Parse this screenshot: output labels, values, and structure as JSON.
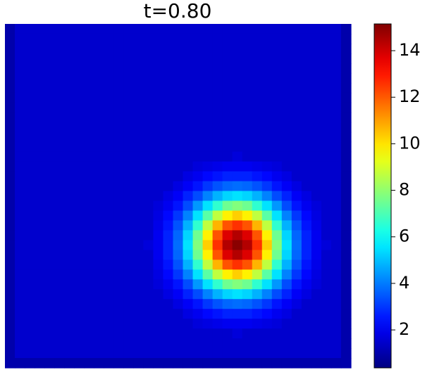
{
  "chart_data": {
    "type": "heatmap",
    "title": "t=0.80",
    "colormap": "jet",
    "clim": [
      0.37,
      15.15
    ],
    "cticks": [
      2,
      4,
      6,
      8,
      10,
      12,
      14
    ],
    "z": [
      [
        1.0,
        1.5,
        1.5,
        1.5,
        1.5,
        1.5,
        1.5,
        1.5,
        1.5,
        1.5,
        1.5,
        1.5,
        1.5,
        1.5,
        1.5,
        1.5,
        1.5,
        1.5,
        1.5,
        1.5,
        1.5,
        1.5,
        1.5,
        1.5,
        1.5,
        1.5,
        1.5,
        1.5,
        1.5,
        1.5,
        1.5,
        1.5,
        1.5,
        1.5,
        1.0
      ],
      [
        1.0,
        1.5,
        1.5,
        1.5,
        1.5,
        1.5,
        1.5,
        1.5,
        1.5,
        1.5,
        1.5,
        1.5,
        1.5,
        1.5,
        1.5,
        1.5,
        1.5,
        1.5,
        1.5,
        1.5,
        1.5,
        1.5,
        1.5,
        1.5,
        1.5,
        1.5,
        1.5,
        1.5,
        1.5,
        1.5,
        1.5,
        1.5,
        1.5,
        1.5,
        1.0
      ],
      [
        1.0,
        1.5,
        1.5,
        1.5,
        1.5,
        1.5,
        1.5,
        1.5,
        1.5,
        1.5,
        1.5,
        1.5,
        1.5,
        1.5,
        1.5,
        1.5,
        1.5,
        1.5,
        1.5,
        1.5,
        1.5,
        1.5,
        1.5,
        1.5,
        1.5,
        1.5,
        1.5,
        1.5,
        1.5,
        1.5,
        1.5,
        1.5,
        1.5,
        1.5,
        1.0
      ],
      [
        1.0,
        1.5,
        1.5,
        1.5,
        1.5,
        1.5,
        1.5,
        1.5,
        1.5,
        1.5,
        1.5,
        1.5,
        1.5,
        1.5,
        1.5,
        1.5,
        1.5,
        1.5,
        1.5,
        1.5,
        1.5,
        1.5,
        1.5,
        1.5,
        1.5,
        1.5,
        1.5,
        1.5,
        1.5,
        1.5,
        1.5,
        1.5,
        1.5,
        1.5,
        1.0
      ],
      [
        1.0,
        1.5,
        1.5,
        1.5,
        1.5,
        1.5,
        1.5,
        1.5,
        1.5,
        1.5,
        1.5,
        1.5,
        1.5,
        1.5,
        1.5,
        1.5,
        1.5,
        1.5,
        1.5,
        1.5,
        1.5,
        1.5,
        1.5,
        1.5,
        1.5,
        1.5,
        1.5,
        1.5,
        1.5,
        1.5,
        1.5,
        1.5,
        1.5,
        1.5,
        1.0
      ],
      [
        1.0,
        1.5,
        1.5,
        1.5,
        1.5,
        1.5,
        1.5,
        1.5,
        1.5,
        1.5,
        1.5,
        1.5,
        1.5,
        1.5,
        1.5,
        1.5,
        1.5,
        1.5,
        1.5,
        1.5,
        1.5,
        1.5,
        1.5,
        1.5,
        1.5,
        1.5,
        1.5,
        1.5,
        1.5,
        1.5,
        1.5,
        1.5,
        1.5,
        1.5,
        1.0
      ],
      [
        1.0,
        1.5,
        1.5,
        1.5,
        1.5,
        1.5,
        1.5,
        1.5,
        1.5,
        1.5,
        1.5,
        1.5,
        1.5,
        1.5,
        1.5,
        1.5,
        1.5,
        1.5,
        1.5,
        1.5,
        1.5,
        1.5,
        1.5,
        1.5,
        1.5,
        1.5,
        1.5,
        1.5,
        1.5,
        1.5,
        1.5,
        1.5,
        1.5,
        1.5,
        1.0
      ],
      [
        1.0,
        1.5,
        1.5,
        1.5,
        1.5,
        1.5,
        1.5,
        1.5,
        1.5,
        1.5,
        1.5,
        1.5,
        1.5,
        1.5,
        1.5,
        1.5,
        1.5,
        1.5,
        1.5,
        1.5,
        1.5,
        1.5,
        1.5,
        1.5,
        1.5,
        1.5,
        1.5,
        1.5,
        1.5,
        1.5,
        1.5,
        1.5,
        1.5,
        1.5,
        1.0
      ],
      [
        1.0,
        1.5,
        1.5,
        1.5,
        1.5,
        1.5,
        1.5,
        1.5,
        1.5,
        1.5,
        1.5,
        1.5,
        1.5,
        1.5,
        1.5,
        1.5,
        1.5,
        1.5,
        1.5,
        1.5,
        1.5,
        1.5,
        1.5,
        1.5,
        1.5,
        1.5,
        1.5,
        1.5,
        1.5,
        1.5,
        1.5,
        1.5,
        1.5,
        1.5,
        1.0
      ],
      [
        1.0,
        1.5,
        1.5,
        1.5,
        1.5,
        1.5,
        1.5,
        1.5,
        1.5,
        1.5,
        1.5,
        1.5,
        1.5,
        1.5,
        1.5,
        1.5,
        1.5,
        1.5,
        1.5,
        1.5,
        1.5,
        1.5,
        1.5,
        1.5,
        1.5,
        1.5,
        1.5,
        1.5,
        1.5,
        1.5,
        1.5,
        1.5,
        1.5,
        1.5,
        1.0
      ],
      [
        1.0,
        1.5,
        1.5,
        1.5,
        1.5,
        1.5,
        1.5,
        1.5,
        1.5,
        1.5,
        1.5,
        1.5,
        1.5,
        1.5,
        1.5,
        1.5,
        1.5,
        1.5,
        1.5,
        1.5,
        1.5,
        1.5,
        1.5,
        1.5,
        1.5,
        1.5,
        1.5,
        1.5,
        1.5,
        1.5,
        1.5,
        1.5,
        1.5,
        1.5,
        1.0
      ],
      [
        1.0,
        1.5,
        1.5,
        1.5,
        1.5,
        1.5,
        1.5,
        1.5,
        1.5,
        1.5,
        1.5,
        1.5,
        1.5,
        1.5,
        1.5,
        1.5,
        1.5,
        1.5,
        1.5,
        1.5,
        1.5,
        1.5,
        1.5,
        1.5,
        1.5,
        1.5,
        1.5,
        1.5,
        1.5,
        1.5,
        1.5,
        1.5,
        1.5,
        1.5,
        1.0
      ],
      [
        1.0,
        1.5,
        1.5,
        1.5,
        1.5,
        1.5,
        1.5,
        1.5,
        1.5,
        1.5,
        1.5,
        1.5,
        1.5,
        1.5,
        1.5,
        1.5,
        1.5,
        1.5,
        1.5,
        1.5,
        1.5,
        1.5,
        1.5,
        1.5,
        1.5,
        1.5,
        1.5,
        1.5,
        1.5,
        1.5,
        1.5,
        1.5,
        1.5,
        1.5,
        1.0
      ],
      [
        1.0,
        1.5,
        1.5,
        1.5,
        1.5,
        1.5,
        1.5,
        1.5,
        1.5,
        1.5,
        1.5,
        1.5,
        1.5,
        1.5,
        1.5,
        1.5,
        1.5,
        1.5,
        1.5,
        1.5,
        1.5,
        1.5,
        1.5,
        1.7,
        1.5,
        1.5,
        1.5,
        1.5,
        1.5,
        1.5,
        1.5,
        1.5,
        1.5,
        1.5,
        1.0
      ],
      [
        1.0,
        1.5,
        1.5,
        1.5,
        1.5,
        1.5,
        1.5,
        1.5,
        1.5,
        1.5,
        1.5,
        1.5,
        1.5,
        1.5,
        1.5,
        1.5,
        1.5,
        1.5,
        1.5,
        1.7,
        1.8,
        1.9,
        2.0,
        2.0,
        2.0,
        1.9,
        1.8,
        1.7,
        1.5,
        1.5,
        1.5,
        1.5,
        1.5,
        1.5,
        1.0
      ],
      [
        1.0,
        1.5,
        1.5,
        1.5,
        1.5,
        1.5,
        1.5,
        1.5,
        1.5,
        1.5,
        1.5,
        1.5,
        1.5,
        1.5,
        1.5,
        1.5,
        1.5,
        1.5,
        1.8,
        2.0,
        2.3,
        2.5,
        2.7,
        2.7,
        2.7,
        2.5,
        2.3,
        2.0,
        1.8,
        1.5,
        1.5,
        1.5,
        1.5,
        1.5,
        1.0
      ],
      [
        1.0,
        1.5,
        1.5,
        1.5,
        1.5,
        1.5,
        1.5,
        1.5,
        1.5,
        1.5,
        1.5,
        1.5,
        1.5,
        1.5,
        1.5,
        1.5,
        1.5,
        1.8,
        2.1,
        2.5,
        3.0,
        3.4,
        3.7,
        3.8,
        3.7,
        3.4,
        3.0,
        2.5,
        2.1,
        1.8,
        1.5,
        1.5,
        1.5,
        1.5,
        1.0
      ],
      [
        1.0,
        1.5,
        1.5,
        1.5,
        1.5,
        1.5,
        1.5,
        1.5,
        1.5,
        1.5,
        1.5,
        1.5,
        1.5,
        1.5,
        1.5,
        1.5,
        1.8,
        2.1,
        2.7,
        3.3,
        4.1,
        4.8,
        5.3,
        5.5,
        5.3,
        4.8,
        4.1,
        3.3,
        2.7,
        2.1,
        1.8,
        1.5,
        1.5,
        1.5,
        1.0
      ],
      [
        1.0,
        1.5,
        1.5,
        1.5,
        1.5,
        1.5,
        1.5,
        1.5,
        1.5,
        1.5,
        1.5,
        1.5,
        1.5,
        1.5,
        1.5,
        1.7,
        2.0,
        2.5,
        3.3,
        4.4,
        5.5,
        6.6,
        7.5,
        7.8,
        7.5,
        6.6,
        5.5,
        4.4,
        3.3,
        2.5,
        2.0,
        1.7,
        1.5,
        1.5,
        1.0
      ],
      [
        1.0,
        1.5,
        1.5,
        1.5,
        1.5,
        1.5,
        1.5,
        1.5,
        1.5,
        1.5,
        1.5,
        1.5,
        1.5,
        1.5,
        1.5,
        1.8,
        2.3,
        3.0,
        4.1,
        5.5,
        7.2,
        8.7,
        9.8,
        10.3,
        9.8,
        8.7,
        7.2,
        5.5,
        4.1,
        3.0,
        2.3,
        1.8,
        1.5,
        1.5,
        1.0
      ],
      [
        1.0,
        1.5,
        1.5,
        1.5,
        1.5,
        1.5,
        1.5,
        1.5,
        1.5,
        1.5,
        1.5,
        1.5,
        1.5,
        1.5,
        1.5,
        1.9,
        2.5,
        3.4,
        4.8,
        6.6,
        8.7,
        10.7,
        12.1,
        12.6,
        12.1,
        10.7,
        8.7,
        6.6,
        4.8,
        3.4,
        2.5,
        1.9,
        1.5,
        1.5,
        1.0
      ],
      [
        1.0,
        1.5,
        1.5,
        1.5,
        1.5,
        1.5,
        1.5,
        1.5,
        1.5,
        1.5,
        1.5,
        1.5,
        1.5,
        1.5,
        1.5,
        2.0,
        2.7,
        3.7,
        5.3,
        7.5,
        9.8,
        12.1,
        13.8,
        14.4,
        13.8,
        12.1,
        9.8,
        7.5,
        5.3,
        3.7,
        2.7,
        2.0,
        1.5,
        1.5,
        1.0
      ],
      [
        1.0,
        1.5,
        1.5,
        1.5,
        1.5,
        1.5,
        1.5,
        1.5,
        1.5,
        1.5,
        1.5,
        1.5,
        1.5,
        1.5,
        1.7,
        2.0,
        2.7,
        3.8,
        5.5,
        7.8,
        10.3,
        12.6,
        14.4,
        15.0,
        14.4,
        12.6,
        10.3,
        7.8,
        5.5,
        3.8,
        2.7,
        2.0,
        1.7,
        1.5,
        1.0
      ],
      [
        1.0,
        1.5,
        1.5,
        1.5,
        1.5,
        1.5,
        1.5,
        1.5,
        1.5,
        1.5,
        1.5,
        1.5,
        1.5,
        1.5,
        1.5,
        2.0,
        2.7,
        3.7,
        5.3,
        7.5,
        9.8,
        12.1,
        13.8,
        14.4,
        13.8,
        12.1,
        9.8,
        7.5,
        5.3,
        3.7,
        2.7,
        2.0,
        1.5,
        1.5,
        1.0
      ],
      [
        1.0,
        1.5,
        1.5,
        1.5,
        1.5,
        1.5,
        1.5,
        1.5,
        1.5,
        1.5,
        1.5,
        1.5,
        1.5,
        1.5,
        1.5,
        1.9,
        2.5,
        3.4,
        4.8,
        6.6,
        8.7,
        10.7,
        12.1,
        12.6,
        12.1,
        10.7,
        8.7,
        6.6,
        4.8,
        3.4,
        2.5,
        1.9,
        1.5,
        1.5,
        1.0
      ],
      [
        1.0,
        1.5,
        1.5,
        1.5,
        1.5,
        1.5,
        1.5,
        1.5,
        1.5,
        1.5,
        1.5,
        1.5,
        1.5,
        1.5,
        1.5,
        1.8,
        2.3,
        3.0,
        4.1,
        5.5,
        7.2,
        8.7,
        9.8,
        10.3,
        9.8,
        8.7,
        7.2,
        5.5,
        4.1,
        3.0,
        2.3,
        1.8,
        1.5,
        1.5,
        1.0
      ],
      [
        1.0,
        1.5,
        1.5,
        1.5,
        1.5,
        1.5,
        1.5,
        1.5,
        1.5,
        1.5,
        1.5,
        1.5,
        1.5,
        1.5,
        1.5,
        1.7,
        2.0,
        2.5,
        3.3,
        4.4,
        5.5,
        6.6,
        7.5,
        7.8,
        7.5,
        6.6,
        5.5,
        4.4,
        3.3,
        2.5,
        2.0,
        1.7,
        1.5,
        1.5,
        1.0
      ],
      [
        1.0,
        1.5,
        1.5,
        1.5,
        1.5,
        1.5,
        1.5,
        1.5,
        1.5,
        1.5,
        1.5,
        1.5,
        1.5,
        1.5,
        1.5,
        1.5,
        1.8,
        2.1,
        2.7,
        3.3,
        4.1,
        4.8,
        5.3,
        5.5,
        5.3,
        4.8,
        4.1,
        3.3,
        2.7,
        2.1,
        1.8,
        1.5,
        1.5,
        1.5,
        1.0
      ],
      [
        1.0,
        1.5,
        1.5,
        1.5,
        1.5,
        1.5,
        1.5,
        1.5,
        1.5,
        1.5,
        1.5,
        1.5,
        1.5,
        1.5,
        1.5,
        1.5,
        1.5,
        1.8,
        2.1,
        2.5,
        3.0,
        3.4,
        3.7,
        3.8,
        3.7,
        3.4,
        3.0,
        2.5,
        2.1,
        1.8,
        1.5,
        1.5,
        1.5,
        1.5,
        1.0
      ],
      [
        1.0,
        1.5,
        1.5,
        1.5,
        1.5,
        1.5,
        1.5,
        1.5,
        1.5,
        1.5,
        1.5,
        1.5,
        1.5,
        1.5,
        1.5,
        1.5,
        1.5,
        1.5,
        1.8,
        2.0,
        2.3,
        2.5,
        2.7,
        2.7,
        2.7,
        2.5,
        2.3,
        2.0,
        1.8,
        1.5,
        1.5,
        1.5,
        1.5,
        1.5,
        1.0
      ],
      [
        1.0,
        1.5,
        1.5,
        1.5,
        1.5,
        1.5,
        1.5,
        1.5,
        1.5,
        1.5,
        1.5,
        1.5,
        1.5,
        1.5,
        1.5,
        1.5,
        1.5,
        1.5,
        1.5,
        1.7,
        1.8,
        1.9,
        2.0,
        2.0,
        2.0,
        1.9,
        1.8,
        1.7,
        1.5,
        1.5,
        1.5,
        1.5,
        1.5,
        1.5,
        1.0
      ],
      [
        1.0,
        1.5,
        1.5,
        1.5,
        1.5,
        1.5,
        1.5,
        1.5,
        1.5,
        1.5,
        1.5,
        1.5,
        1.5,
        1.5,
        1.5,
        1.5,
        1.5,
        1.5,
        1.5,
        1.5,
        1.5,
        1.5,
        1.5,
        1.7,
        1.5,
        1.5,
        1.5,
        1.5,
        1.5,
        1.5,
        1.5,
        1.5,
        1.5,
        1.5,
        1.0
      ],
      [
        1.0,
        1.5,
        1.5,
        1.5,
        1.5,
        1.5,
        1.5,
        1.5,
        1.5,
        1.5,
        1.5,
        1.5,
        1.5,
        1.5,
        1.5,
        1.5,
        1.5,
        1.5,
        1.5,
        1.5,
        1.5,
        1.5,
        1.5,
        1.5,
        1.5,
        1.5,
        1.5,
        1.5,
        1.5,
        1.5,
        1.5,
        1.5,
        1.5,
        1.5,
        1.0
      ],
      [
        1.0,
        1.5,
        1.5,
        1.5,
        1.5,
        1.5,
        1.5,
        1.5,
        1.5,
        1.5,
        1.5,
        1.5,
        1.5,
        1.5,
        1.5,
        1.5,
        1.5,
        1.5,
        1.5,
        1.5,
        1.5,
        1.5,
        1.5,
        1.5,
        1.5,
        1.5,
        1.5,
        1.5,
        1.5,
        1.5,
        1.5,
        1.5,
        1.5,
        1.5,
        1.0
      ],
      [
        1.0,
        1.0,
        1.0,
        1.0,
        1.0,
        1.0,
        1.0,
        1.0,
        1.0,
        1.0,
        1.0,
        1.0,
        1.0,
        1.0,
        1.0,
        1.0,
        1.0,
        1.0,
        1.0,
        1.0,
        1.0,
        1.0,
        1.0,
        1.0,
        1.0,
        1.0,
        1.0,
        1.0,
        1.0,
        1.0,
        1.0,
        1.0,
        1.0,
        1.0,
        1.0
      ]
    ]
  }
}
